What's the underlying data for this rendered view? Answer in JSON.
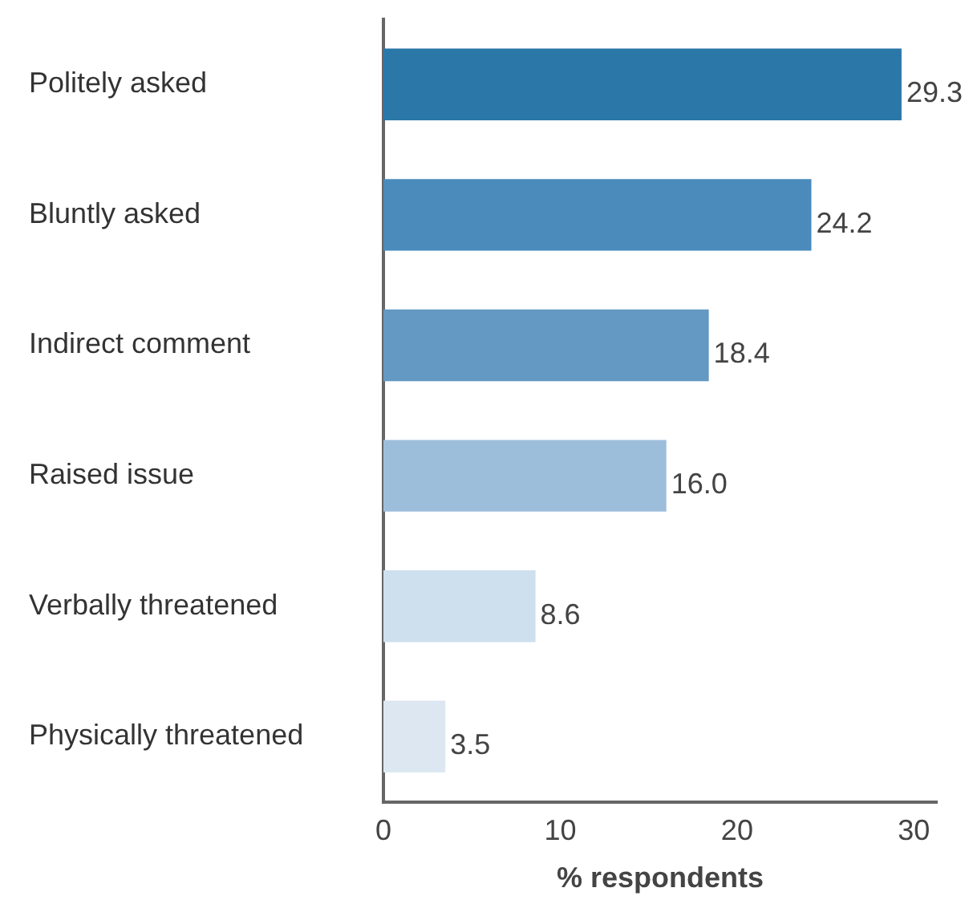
{
  "chart_data": {
    "type": "bar",
    "orientation": "horizontal",
    "xlabel": "% respondents",
    "categories": [
      "Politely asked",
      "Bluntly asked",
      "Indirect comment",
      "Raised issue",
      "Verbally threatened",
      "Physically threatened"
    ],
    "values": [
      29.3,
      24.2,
      18.4,
      16.0,
      8.6,
      3.5
    ],
    "colors": [
      "#2a77a8",
      "#4a8bbb",
      "#6399c2",
      "#9dbedb",
      "#cedfed",
      "#dce7f1"
    ],
    "value_labels": [
      "29.3",
      "24.2",
      "18.4",
      "16.0",
      "8.6",
      "3.5"
    ],
    "xlim": [
      0,
      31.3
    ],
    "xticks": [
      0,
      10,
      20,
      30
    ],
    "grid": false,
    "legend": false
  }
}
